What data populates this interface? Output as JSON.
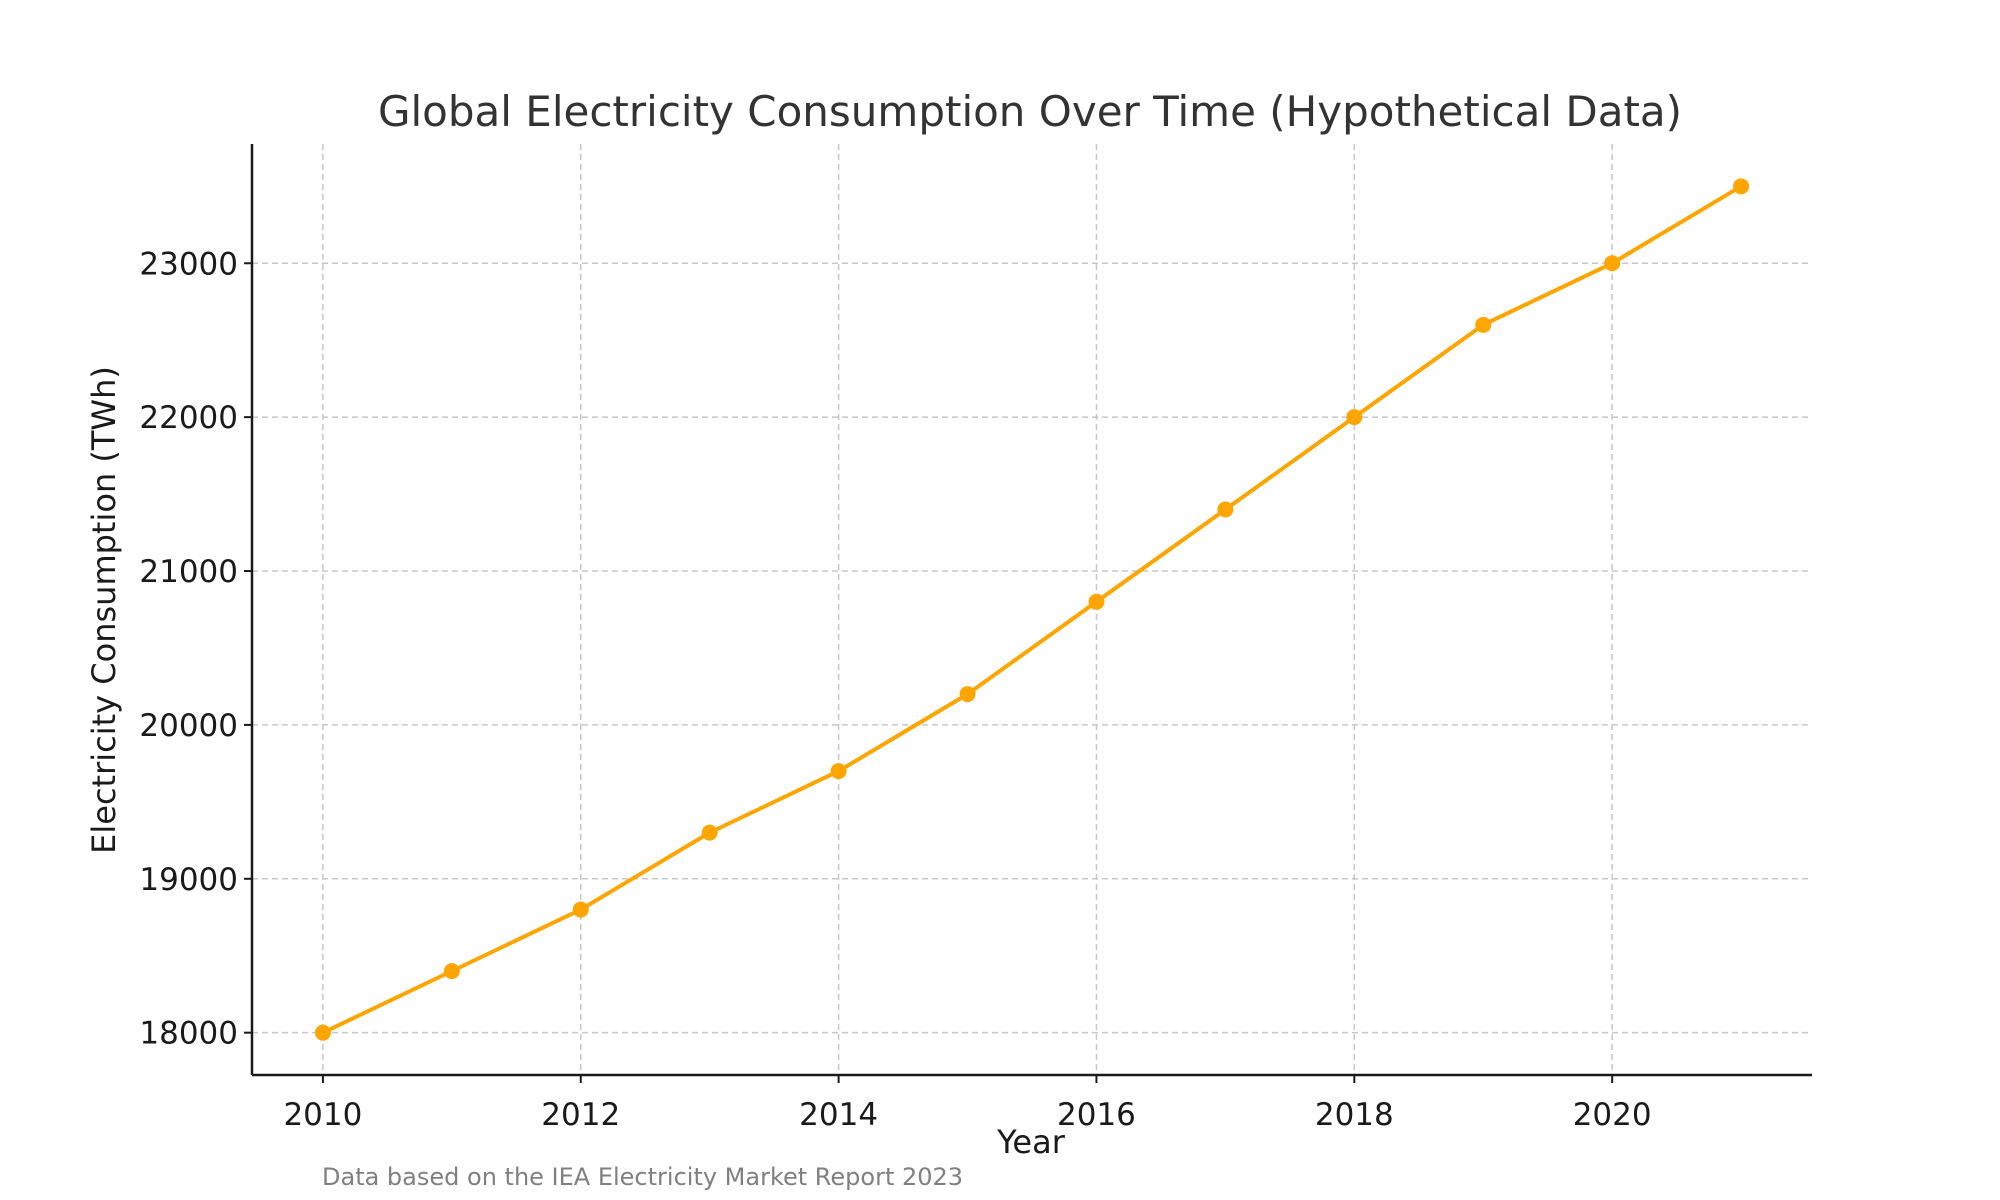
{
  "chart_data": {
    "type": "line",
    "title": "Global Electricity Consumption Over Time (Hypothetical Data)",
    "xlabel": "Year",
    "ylabel": "Electricity Consumption (TWh)",
    "source_note": "Data based on the IEA Electricity Market Report 2023",
    "x": [
      2010,
      2011,
      2012,
      2013,
      2014,
      2015,
      2016,
      2017,
      2018,
      2019,
      2020,
      2021
    ],
    "series": [
      {
        "values": [
          18000,
          18400,
          18800,
          19300,
          19700,
          20200,
          20800,
          21400,
          22000,
          22600,
          23000,
          23500
        ],
        "color": "#FFA500"
      }
    ],
    "xlim": [
      2009.45,
      2021.55
    ],
    "ylim": [
      17725,
      23775
    ],
    "x_ticks": [
      2010,
      2012,
      2014,
      2016,
      2018,
      2020
    ],
    "y_ticks": [
      18000,
      19000,
      20000,
      21000,
      22000,
      23000
    ],
    "grid": true,
    "grid_style": "dashed",
    "markers": "circle"
  }
}
